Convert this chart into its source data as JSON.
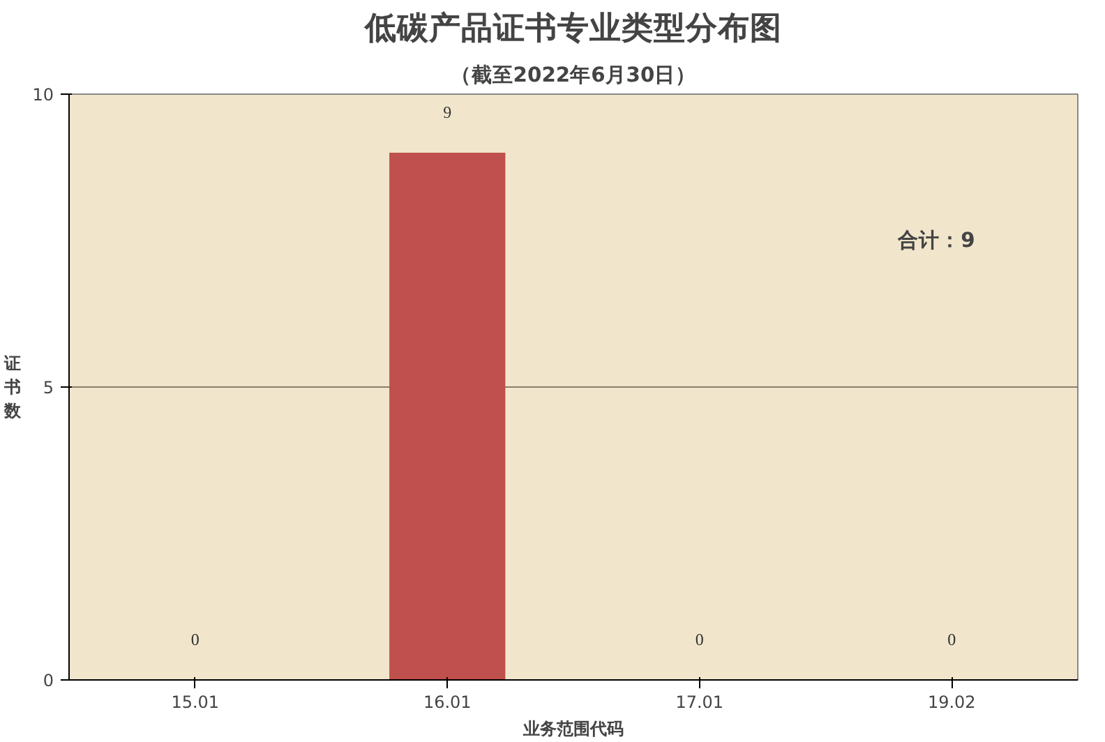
{
  "chart_data": {
    "type": "bar",
    "title": "低碳产品证书专业类型分布图",
    "subtitle": "（截至2022年6月30日）",
    "xlabel": "业务范围代码",
    "ylabel": "证书数",
    "categories": [
      "15.01",
      "16.01",
      "17.01",
      "19.02"
    ],
    "values": [
      0,
      9,
      0,
      0
    ],
    "color": "#c0504d",
    "ylim": [
      0,
      10
    ],
    "yticks": [
      0,
      5,
      10
    ],
    "grid": "y",
    "data_labels": true,
    "annotations": [
      "合计：9"
    ]
  }
}
